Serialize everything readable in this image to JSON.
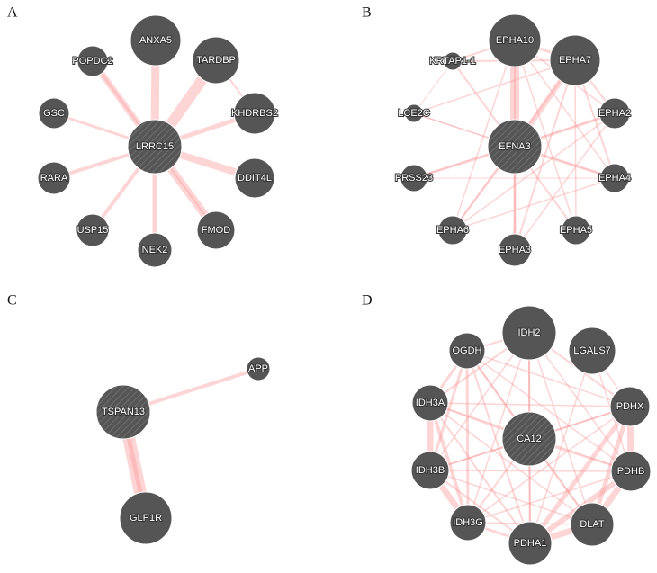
{
  "panels": [
    {
      "label": "A",
      "nodes": [
        "LRRC15",
        "ANXA5",
        "TARDBP",
        "POPDC2",
        "KHDRBS2",
        "GSC",
        "RARA",
        "DDIT4L",
        "USP15",
        "FMOD",
        "NEK2"
      ]
    },
    {
      "label": "B",
      "nodes": [
        "EFNA3",
        "EPHA10",
        "EPHA7",
        "KRTAP1-1",
        "LCE2C",
        "EPHA2",
        "PRSS23",
        "EPHA4",
        "EPHA6",
        "EPHA5",
        "EPHA3"
      ]
    },
    {
      "label": "C",
      "nodes": [
        "TSPAN13",
        "APP",
        "GLP1R"
      ]
    },
    {
      "label": "D",
      "nodes": [
        "CA12",
        "IDH2",
        "LGALS7",
        "OGDH",
        "IDH3A",
        "PDHX",
        "IDH3B",
        "PDHB",
        "IDH3G",
        "DLAT",
        "PDHA1"
      ]
    }
  ]
}
